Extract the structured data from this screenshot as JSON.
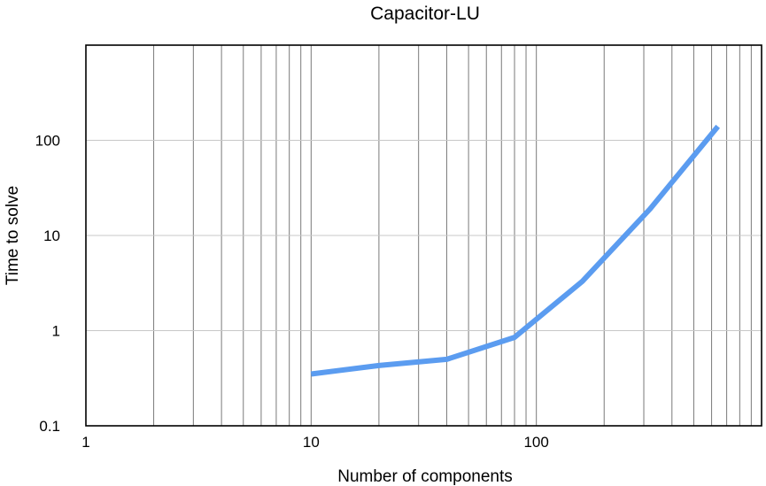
{
  "chart_data": {
    "type": "line",
    "title": "Capacitor-LU",
    "xlabel": "Number of components",
    "ylabel": "Time to solve",
    "x_scale": "log",
    "y_scale": "log",
    "xlim": [
      1,
      1000
    ],
    "ylim": [
      0.1,
      1000
    ],
    "x_ticks": [
      "1",
      "10",
      "100"
    ],
    "y_ticks": [
      "0.1",
      "1",
      "10",
      "100"
    ],
    "grid": true,
    "legend": "none",
    "series": [
      {
        "color": "#5b9cf0",
        "x": [
          10,
          20,
          40,
          80,
          160,
          320,
          640
        ],
        "y": [
          0.35,
          0.43,
          0.5,
          0.85,
          3.3,
          19,
          140
        ]
      }
    ]
  }
}
